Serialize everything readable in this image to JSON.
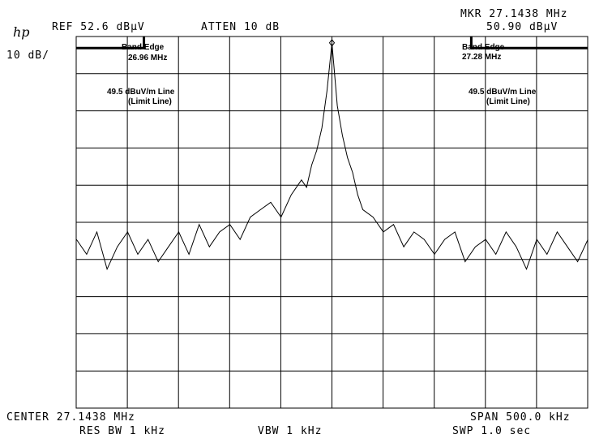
{
  "header": {
    "logo": "hp",
    "ref": "REF 52.6 dBμV",
    "atten": "ATTEN 10 dB",
    "scale": "10 dB/",
    "marker_freq": "MKR 27.1438 MHz",
    "marker_amp": "50.90 dBμV"
  },
  "annotations": {
    "left_edge_title": "Band Edge",
    "left_edge_freq": "26.96 MHz",
    "right_edge_title": "Band Edge",
    "right_edge_freq": "27.28 MHz",
    "limit_line": "49.5 dBuV/m Line",
    "limit_sub": "(Limit Line)"
  },
  "footer": {
    "center": "CENTER 27.1438 MHz",
    "span": "SPAN 500.0 kHz",
    "rbw": "RES BW 1 kHz",
    "vbw": "VBW 1 kHz",
    "sweep": "SWP 1.0 sec"
  },
  "chart_data": {
    "type": "line",
    "x_unit": "MHz",
    "y_unit": "dBμV",
    "xlim": [
      26.8938,
      27.3938
    ],
    "ylim": [
      -47.4,
      52.6
    ],
    "grid": true,
    "limit_line_level": 49.5,
    "band_edges": [
      26.96,
      27.28
    ],
    "marker": {
      "x": 27.1438,
      "y": 50.9
    },
    "series": [
      {
        "x": [
          26.894,
          26.904,
          26.914,
          26.924,
          26.934,
          26.944,
          26.954,
          26.964,
          26.974,
          26.984,
          26.994,
          27.004,
          27.014,
          27.024,
          27.034,
          27.044,
          27.054,
          27.064,
          27.074,
          27.084,
          27.094,
          27.104,
          27.114,
          27.119,
          27.124,
          27.129,
          27.134,
          27.139,
          27.1438,
          27.149,
          27.154,
          27.159,
          27.164,
          27.169,
          27.174,
          27.184,
          27.194,
          27.204,
          27.214,
          27.224,
          27.234,
          27.244,
          27.254,
          27.264,
          27.274,
          27.284,
          27.294,
          27.304,
          27.314,
          27.324,
          27.334,
          27.344,
          27.354,
          27.364,
          27.374,
          27.384,
          27.394
        ],
        "y": [
          -2,
          -6,
          0,
          -10,
          -4,
          0,
          -6,
          -2,
          -8,
          -4,
          0,
          -6,
          2,
          -4,
          0,
          2,
          -2,
          4,
          6,
          8,
          4,
          10,
          14,
          12,
          18,
          22,
          28,
          38,
          50.9,
          34,
          26,
          20,
          16,
          10,
          6,
          4,
          0,
          2,
          -4,
          0,
          -2,
          -6,
          -2,
          0,
          -8,
          -4,
          -2,
          -6,
          0,
          -4,
          -10,
          -2,
          -6,
          0,
          -4,
          -8,
          -2
        ]
      }
    ]
  }
}
